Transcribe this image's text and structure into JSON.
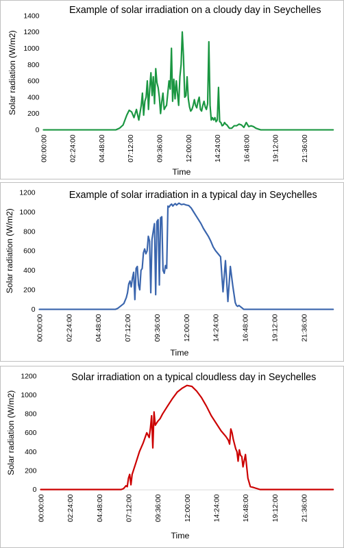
{
  "chart_data": [
    {
      "type": "line",
      "title": "Example of solar irradiation on a cloudy day in Seychelles",
      "xlabel": "Time",
      "ylabel": "Solar radiation (W/m2)",
      "ylim": [
        0,
        1400
      ],
      "yticks": [
        0,
        200,
        400,
        600,
        800,
        1000,
        1200,
        1400
      ],
      "xticks": [
        "00:00:00",
        "02:24:00",
        "04:48:00",
        "07:12:00",
        "09:36:00",
        "12:00:00",
        "14:24:00",
        "16:48:00",
        "19:12:00",
        "21:36:00"
      ],
      "xticks_hours": [
        0,
        2.4,
        4.8,
        7.2,
        9.6,
        12.0,
        14.4,
        16.8,
        19.2,
        21.6
      ],
      "color": "#1a9641",
      "grid": false,
      "series": [
        {
          "x": [
            0,
            6.0,
            6.3,
            6.6,
            6.9,
            7.1,
            7.3,
            7.5,
            7.7,
            7.9,
            8.1,
            8.2,
            8.3,
            8.4,
            8.5,
            8.6,
            8.7,
            8.8,
            8.9,
            9.0,
            9.1,
            9.2,
            9.3,
            9.4,
            9.5,
            9.6,
            9.7,
            9.8,
            9.9,
            10.0,
            10.1,
            10.2,
            10.3,
            10.4,
            10.5,
            10.6,
            10.7,
            10.8,
            10.9,
            11.0,
            11.1,
            11.2,
            11.3,
            11.4,
            11.5,
            11.6,
            11.7,
            11.8,
            11.9,
            12.0,
            12.1,
            12.2,
            12.3,
            12.4,
            12.5,
            12.6,
            12.7,
            12.8,
            12.9,
            13.0,
            13.1,
            13.2,
            13.3,
            13.4,
            13.5,
            13.6,
            13.7,
            13.8,
            13.9,
            14.0,
            14.1,
            14.2,
            14.3,
            14.4,
            14.5,
            14.6,
            14.7,
            14.8,
            14.9,
            15.0,
            15.1,
            15.2,
            15.3,
            15.4,
            15.6,
            15.8,
            16.0,
            16.2,
            16.4,
            16.6,
            16.8,
            17.0,
            17.2,
            17.4,
            17.6,
            17.8,
            18.0,
            18.3,
            24.0
          ],
          "y": [
            0,
            0,
            20,
            60,
            180,
            240,
            220,
            150,
            250,
            120,
            300,
            450,
            180,
            350,
            400,
            600,
            250,
            500,
            700,
            420,
            650,
            320,
            750,
            580,
            520,
            400,
            200,
            350,
            450,
            250,
            280,
            300,
            450,
            600,
            500,
            1000,
            350,
            620,
            380,
            600,
            450,
            300,
            650,
            800,
            1200,
            900,
            400,
            420,
            650,
            380,
            280,
            230,
            250,
            300,
            370,
            300,
            270,
            350,
            400,
            250,
            230,
            300,
            350,
            280,
            250,
            320,
            1080,
            300,
            120,
            150,
            120,
            150,
            100,
            120,
            520,
            100,
            90,
            50,
            60,
            90,
            70,
            60,
            40,
            20,
            20,
            50,
            50,
            70,
            60,
            30,
            90,
            40,
            50,
            40,
            20,
            10,
            0,
            0,
            0
          ]
        }
      ]
    },
    {
      "type": "line",
      "title": "Example of solar irradiation in a typical day in Seychelles",
      "xlabel": "Time",
      "ylabel": "Solar radiation (W/m2)",
      "ylim": [
        0,
        1200
      ],
      "yticks": [
        0,
        200,
        400,
        600,
        800,
        1000,
        1200
      ],
      "xticks": [
        "00:00:00",
        "02:24:00",
        "04:48:00",
        "07:12:00",
        "09:36:00",
        "12:00:00",
        "14:24:00",
        "16:48:00",
        "19:12:00",
        "21:36:00"
      ],
      "xticks_hours": [
        0,
        2.4,
        4.8,
        7.2,
        9.6,
        12.0,
        14.4,
        16.8,
        19.2,
        21.6
      ],
      "color": "#3a65ad",
      "grid": false,
      "series": [
        {
          "x": [
            0,
            6.2,
            6.4,
            6.7,
            6.9,
            7.1,
            7.2,
            7.3,
            7.4,
            7.5,
            7.6,
            7.7,
            7.8,
            7.9,
            8.0,
            8.1,
            8.2,
            8.3,
            8.4,
            8.5,
            8.6,
            8.7,
            8.8,
            8.9,
            9.0,
            9.1,
            9.2,
            9.3,
            9.4,
            9.5,
            9.6,
            9.7,
            9.8,
            9.9,
            10.0,
            10.1,
            10.2,
            10.3,
            10.4,
            10.5,
            10.6,
            10.7,
            10.8,
            10.9,
            11.0,
            11.1,
            11.2,
            11.3,
            11.4,
            11.6,
            11.8,
            12.0,
            12.2,
            12.4,
            12.6,
            12.8,
            13.0,
            13.2,
            13.4,
            13.6,
            13.8,
            14.0,
            14.2,
            14.4,
            14.6,
            14.8,
            15.0,
            15.2,
            15.4,
            15.6,
            15.8,
            16.0,
            16.1,
            16.2,
            16.3,
            16.4,
            16.5,
            16.6,
            16.7,
            16.8,
            17.0,
            17.3,
            17.6,
            18.0,
            18.3,
            24.0
          ],
          "y": [
            0,
            0,
            10,
            40,
            60,
            120,
            170,
            260,
            290,
            230,
            320,
            380,
            100,
            420,
            440,
            250,
            200,
            400,
            420,
            580,
            620,
            570,
            600,
            750,
            700,
            170,
            720,
            800,
            880,
            150,
            900,
            920,
            250,
            940,
            950,
            400,
            370,
            450,
            420,
            1060,
            1050,
            1070,
            1080,
            1060,
            1075,
            1085,
            1070,
            1080,
            1090,
            1075,
            1080,
            1070,
            1065,
            1040,
            1000,
            960,
            920,
            880,
            830,
            790,
            750,
            700,
            640,
            600,
            570,
            540,
            180,
            500,
            80,
            440,
            240,
            70,
            40,
            30,
            40,
            30,
            20,
            10,
            0,
            0,
            0,
            0,
            0,
            0,
            0,
            0
          ]
        }
      ]
    },
    {
      "type": "line",
      "title": "Solar irradiation on a typical cloudless day in Seychelles",
      "xlabel": "Time",
      "ylabel": "Solar radiation (W/m2)",
      "ylim": [
        0,
        1200
      ],
      "yticks": [
        0,
        200,
        400,
        600,
        800,
        1000,
        1200
      ],
      "xticks": [
        "00:00:00",
        "02:24:00",
        "04:48:00",
        "07:12:00",
        "09:36:00",
        "12:00:00",
        "14:24:00",
        "16:48:00",
        "19:12:00",
        "21:36:00"
      ],
      "xticks_hours": [
        0,
        2.4,
        4.8,
        7.2,
        9.6,
        12.0,
        14.4,
        16.8,
        19.2,
        21.6
      ],
      "color": "#cc0000",
      "grid": false,
      "series": [
        {
          "x": [
            0,
            6.6,
            6.8,
            7.0,
            7.1,
            7.2,
            7.3,
            7.4,
            7.5,
            7.8,
            8.1,
            8.4,
            8.7,
            8.9,
            9.0,
            9.1,
            9.2,
            9.3,
            9.4,
            9.5,
            9.6,
            9.8,
            10.0,
            10.4,
            10.8,
            11.2,
            11.6,
            12.0,
            12.4,
            12.8,
            13.2,
            13.6,
            14.0,
            14.4,
            14.8,
            15.2,
            15.4,
            15.5,
            15.6,
            15.7,
            15.8,
            16.0,
            16.1,
            16.2,
            16.3,
            16.4,
            16.5,
            16.6,
            16.8,
            17.0,
            17.2,
            17.5,
            18.0,
            24.0
          ],
          "y": [
            0,
            0,
            10,
            40,
            30,
            120,
            160,
            50,
            160,
            280,
            400,
            490,
            600,
            550,
            650,
            780,
            440,
            820,
            680,
            700,
            720,
            750,
            800,
            880,
            960,
            1030,
            1070,
            1100,
            1090,
            1040,
            970,
            880,
            780,
            700,
            620,
            560,
            520,
            480,
            640,
            600,
            530,
            430,
            400,
            300,
            420,
            360,
            350,
            240,
            370,
            120,
            30,
            20,
            0,
            0
          ]
        }
      ]
    }
  ]
}
